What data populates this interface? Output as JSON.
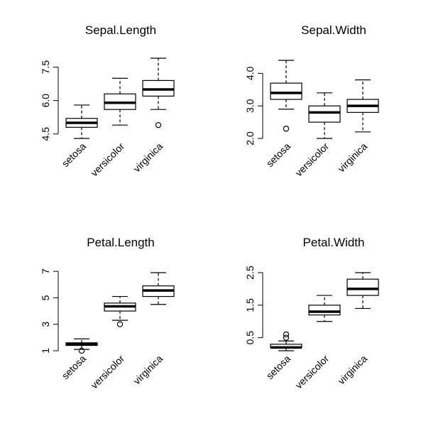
{
  "chart_data": [
    {
      "type": "boxplot",
      "title": "Sepal.Length",
      "categories": [
        "setosa",
        "versicolor",
        "virginica"
      ],
      "yticks": [
        "4.5",
        "6.0",
        "7.5"
      ],
      "ylim": [
        4.3,
        7.9
      ],
      "boxes": [
        {
          "category": "setosa",
          "whisker_low": 4.3,
          "q1": 4.8,
          "median": 5.0,
          "q3": 5.2,
          "whisker_high": 5.8,
          "outliers": []
        },
        {
          "category": "versicolor",
          "whisker_low": 4.9,
          "q1": 5.6,
          "median": 5.9,
          "q3": 6.3,
          "whisker_high": 7.0,
          "outliers": []
        },
        {
          "category": "virginica",
          "whisker_low": 5.6,
          "q1": 6.2,
          "median": 6.5,
          "q3": 6.9,
          "whisker_high": 7.9,
          "outliers": [
            4.9
          ]
        }
      ]
    },
    {
      "type": "boxplot",
      "title": "Sepal.Width",
      "categories": [
        "setosa",
        "versicolor",
        "virginica"
      ],
      "yticks": [
        "2.0",
        "3.0",
        "4.0"
      ],
      "ylim": [
        2.0,
        4.4
      ],
      "boxes": [
        {
          "category": "setosa",
          "whisker_low": 2.9,
          "q1": 3.2,
          "median": 3.4,
          "q3": 3.7,
          "whisker_high": 4.4,
          "outliers": [
            2.3
          ]
        },
        {
          "category": "versicolor",
          "whisker_low": 2.0,
          "q1": 2.5,
          "median": 2.8,
          "q3": 3.0,
          "whisker_high": 3.4,
          "outliers": []
        },
        {
          "category": "virginica",
          "whisker_low": 2.2,
          "q1": 2.8,
          "median": 3.0,
          "q3": 3.2,
          "whisker_high": 3.8,
          "outliers": []
        }
      ]
    },
    {
      "type": "boxplot",
      "title": "Petal.Length",
      "categories": [
        "setosa",
        "versicolor",
        "virginica"
      ],
      "yticks": [
        "1",
        "3",
        "5",
        "7"
      ],
      "ylim": [
        1.0,
        6.9
      ],
      "boxes": [
        {
          "category": "setosa",
          "whisker_low": 1.1,
          "q1": 1.4,
          "median": 1.5,
          "q3": 1.6,
          "whisker_high": 1.9,
          "outliers": [
            1.0
          ]
        },
        {
          "category": "versicolor",
          "whisker_low": 3.3,
          "q1": 4.0,
          "median": 4.35,
          "q3": 4.6,
          "whisker_high": 5.1,
          "outliers": [
            3.0
          ]
        },
        {
          "category": "virginica",
          "whisker_low": 4.5,
          "q1": 5.1,
          "median": 5.55,
          "q3": 5.9,
          "whisker_high": 6.9,
          "outliers": []
        }
      ]
    },
    {
      "type": "boxplot",
      "title": "Petal.Width",
      "categories": [
        "setosa",
        "versicolor",
        "virginica"
      ],
      "yticks": [
        "0.5",
        "1.5",
        "2.5"
      ],
      "ylim": [
        0.1,
        2.5
      ],
      "boxes": [
        {
          "category": "setosa",
          "whisker_low": 0.1,
          "q1": 0.2,
          "median": 0.2,
          "q3": 0.3,
          "whisker_high": 0.4,
          "outliers": [
            0.5,
            0.6
          ]
        },
        {
          "category": "versicolor",
          "whisker_low": 1.0,
          "q1": 1.2,
          "median": 1.3,
          "q3": 1.5,
          "whisker_high": 1.8,
          "outliers": []
        },
        {
          "category": "virginica",
          "whisker_low": 1.4,
          "q1": 1.8,
          "median": 2.0,
          "q3": 2.3,
          "whisker_high": 2.5,
          "outliers": []
        }
      ]
    }
  ]
}
